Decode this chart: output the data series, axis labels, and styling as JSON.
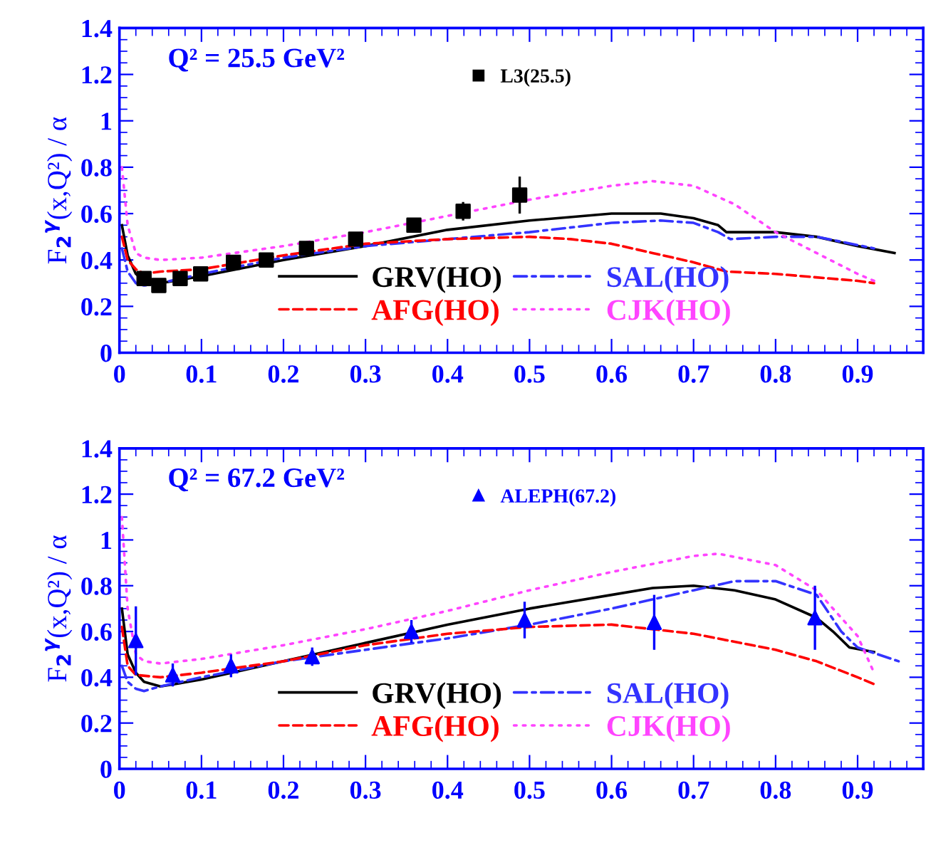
{
  "chart_data": [
    {
      "type": "line",
      "ylabel": "F$_{2}$$^{γ}$(x,Q²) / α",
      "annotations": [
        "Q² = 25.5 GeV²"
      ],
      "xlim": [
        0,
        0.98
      ],
      "ylim": [
        0,
        1.4
      ],
      "xticks": [
        0,
        0.1,
        0.2,
        0.3,
        0.4,
        0.5,
        0.6,
        0.7,
        0.8,
        0.9
      ],
      "yticks": [
        0,
        0.2,
        0.4,
        0.6,
        0.8,
        1,
        1.2,
        1.4
      ],
      "legend": "bottom",
      "grid": false,
      "series": [
        {
          "name": "GRV(HO)",
          "color": "#000000",
          "line_style": "solid",
          "x": [
            0.003,
            0.01,
            0.02,
            0.03,
            0.05,
            0.1,
            0.2,
            0.3,
            0.4,
            0.5,
            0.6,
            0.66,
            0.7,
            0.73,
            0.74,
            0.8,
            0.85,
            0.9,
            0.945
          ],
          "values": [
            0.55,
            0.42,
            0.34,
            0.31,
            0.3,
            0.33,
            0.4,
            0.46,
            0.53,
            0.57,
            0.6,
            0.6,
            0.58,
            0.55,
            0.52,
            0.52,
            0.5,
            0.46,
            0.43
          ]
        },
        {
          "name": "SAL(HO)",
          "color": "#3333ff",
          "line_style": "dashdot",
          "x": [
            0.003,
            0.01,
            0.02,
            0.03,
            0.05,
            0.1,
            0.2,
            0.3,
            0.4,
            0.5,
            0.6,
            0.66,
            0.7,
            0.73,
            0.745,
            0.8,
            0.85,
            0.92
          ],
          "values": [
            0.45,
            0.35,
            0.3,
            0.29,
            0.3,
            0.34,
            0.41,
            0.46,
            0.49,
            0.52,
            0.56,
            0.57,
            0.56,
            0.52,
            0.49,
            0.5,
            0.5,
            0.45
          ]
        },
        {
          "name": "AFG(HO)",
          "color": "#ff0000",
          "line_style": "dashed",
          "x": [
            0.003,
            0.01,
            0.02,
            0.03,
            0.05,
            0.1,
            0.2,
            0.3,
            0.4,
            0.5,
            0.55,
            0.6,
            0.65,
            0.7,
            0.74,
            0.8,
            0.9,
            0.92
          ],
          "values": [
            0.5,
            0.4,
            0.36,
            0.34,
            0.35,
            0.36,
            0.42,
            0.47,
            0.49,
            0.5,
            0.49,
            0.47,
            0.43,
            0.39,
            0.35,
            0.34,
            0.31,
            0.3
          ]
        },
        {
          "name": "CJK(HO)",
          "color": "#ff44ff",
          "line_style": "dotted",
          "x": [
            0.003,
            0.01,
            0.02,
            0.03,
            0.05,
            0.1,
            0.2,
            0.3,
            0.4,
            0.5,
            0.6,
            0.65,
            0.7,
            0.75,
            0.8,
            0.85,
            0.9,
            0.92
          ],
          "values": [
            0.8,
            0.55,
            0.43,
            0.41,
            0.4,
            0.41,
            0.46,
            0.52,
            0.59,
            0.66,
            0.72,
            0.74,
            0.72,
            0.64,
            0.52,
            0.43,
            0.34,
            0.31
          ]
        },
        {
          "name": "L3(25.5)",
          "type": "scatter",
          "marker": "square",
          "color": "#000000",
          "x": [
            0.03,
            0.048,
            0.074,
            0.099,
            0.139,
            0.179,
            0.228,
            0.288,
            0.359,
            0.419,
            0.488
          ],
          "values": [
            0.32,
            0.29,
            0.32,
            0.34,
            0.39,
            0.4,
            0.45,
            0.49,
            0.55,
            0.61,
            0.68
          ],
          "errors": [
            0.02,
            0.02,
            0.02,
            0.02,
            0.02,
            0.02,
            0.02,
            0.02,
            0.03,
            0.04,
            0.08
          ]
        }
      ]
    },
    {
      "type": "line",
      "ylabel": "F$_{2}$$^{γ}$(x,Q²) / α",
      "annotations": [
        "Q² = 67.2 GeV²"
      ],
      "xlim": [
        0,
        0.98
      ],
      "ylim": [
        0,
        1.4
      ],
      "xticks": [
        0,
        0.1,
        0.2,
        0.3,
        0.4,
        0.5,
        0.6,
        0.7,
        0.8,
        0.9
      ],
      "yticks": [
        0,
        0.2,
        0.4,
        0.6,
        0.8,
        1,
        1.2,
        1.4
      ],
      "legend": "bottom",
      "grid": false,
      "series": [
        {
          "name": "GRV(HO)",
          "color": "#000000",
          "line_style": "solid",
          "x": [
            0.003,
            0.01,
            0.02,
            0.03,
            0.05,
            0.1,
            0.2,
            0.3,
            0.4,
            0.5,
            0.6,
            0.65,
            0.7,
            0.75,
            0.8,
            0.85,
            0.87,
            0.89,
            0.92
          ],
          "values": [
            0.7,
            0.5,
            0.42,
            0.38,
            0.36,
            0.39,
            0.47,
            0.55,
            0.63,
            0.7,
            0.76,
            0.79,
            0.8,
            0.78,
            0.74,
            0.66,
            0.6,
            0.53,
            0.51
          ]
        },
        {
          "name": "SAL(HO)",
          "color": "#3333ff",
          "line_style": "dashdot",
          "x": [
            0.003,
            0.01,
            0.02,
            0.03,
            0.05,
            0.1,
            0.2,
            0.3,
            0.4,
            0.5,
            0.6,
            0.7,
            0.75,
            0.8,
            0.85,
            0.88,
            0.9,
            0.95
          ],
          "values": [
            0.45,
            0.38,
            0.35,
            0.34,
            0.36,
            0.4,
            0.47,
            0.52,
            0.57,
            0.63,
            0.7,
            0.78,
            0.82,
            0.82,
            0.76,
            0.6,
            0.53,
            0.47
          ]
        },
        {
          "name": "AFG(HO)",
          "color": "#ff0000",
          "line_style": "dashed",
          "x": [
            0.003,
            0.01,
            0.02,
            0.05,
            0.1,
            0.2,
            0.3,
            0.4,
            0.5,
            0.6,
            0.7,
            0.8,
            0.85,
            0.9,
            0.92
          ],
          "values": [
            0.62,
            0.45,
            0.41,
            0.4,
            0.42,
            0.47,
            0.54,
            0.59,
            0.62,
            0.63,
            0.59,
            0.52,
            0.47,
            0.4,
            0.37
          ]
        },
        {
          "name": "CJK(HO)",
          "color": "#ff44ff",
          "line_style": "dotted",
          "x": [
            0.003,
            0.01,
            0.02,
            0.03,
            0.05,
            0.1,
            0.2,
            0.3,
            0.4,
            0.5,
            0.6,
            0.7,
            0.73,
            0.8,
            0.85,
            0.9,
            0.92
          ],
          "values": [
            1.1,
            0.7,
            0.5,
            0.47,
            0.46,
            0.48,
            0.54,
            0.61,
            0.69,
            0.78,
            0.86,
            0.93,
            0.94,
            0.89,
            0.78,
            0.58,
            0.42
          ]
        },
        {
          "name": "ALEPH(67.2)",
          "type": "scatter",
          "marker": "triangle",
          "color": "#0000ff",
          "x": [
            0.02,
            0.065,
            0.136,
            0.235,
            0.356,
            0.494,
            0.652,
            0.848
          ],
          "values": [
            0.56,
            0.41,
            0.45,
            0.49,
            0.6,
            0.65,
            0.64,
            0.66
          ],
          "errors": [
            0.15,
            0.05,
            0.05,
            0.04,
            0.05,
            0.08,
            0.12,
            0.14
          ]
        }
      ]
    }
  ]
}
